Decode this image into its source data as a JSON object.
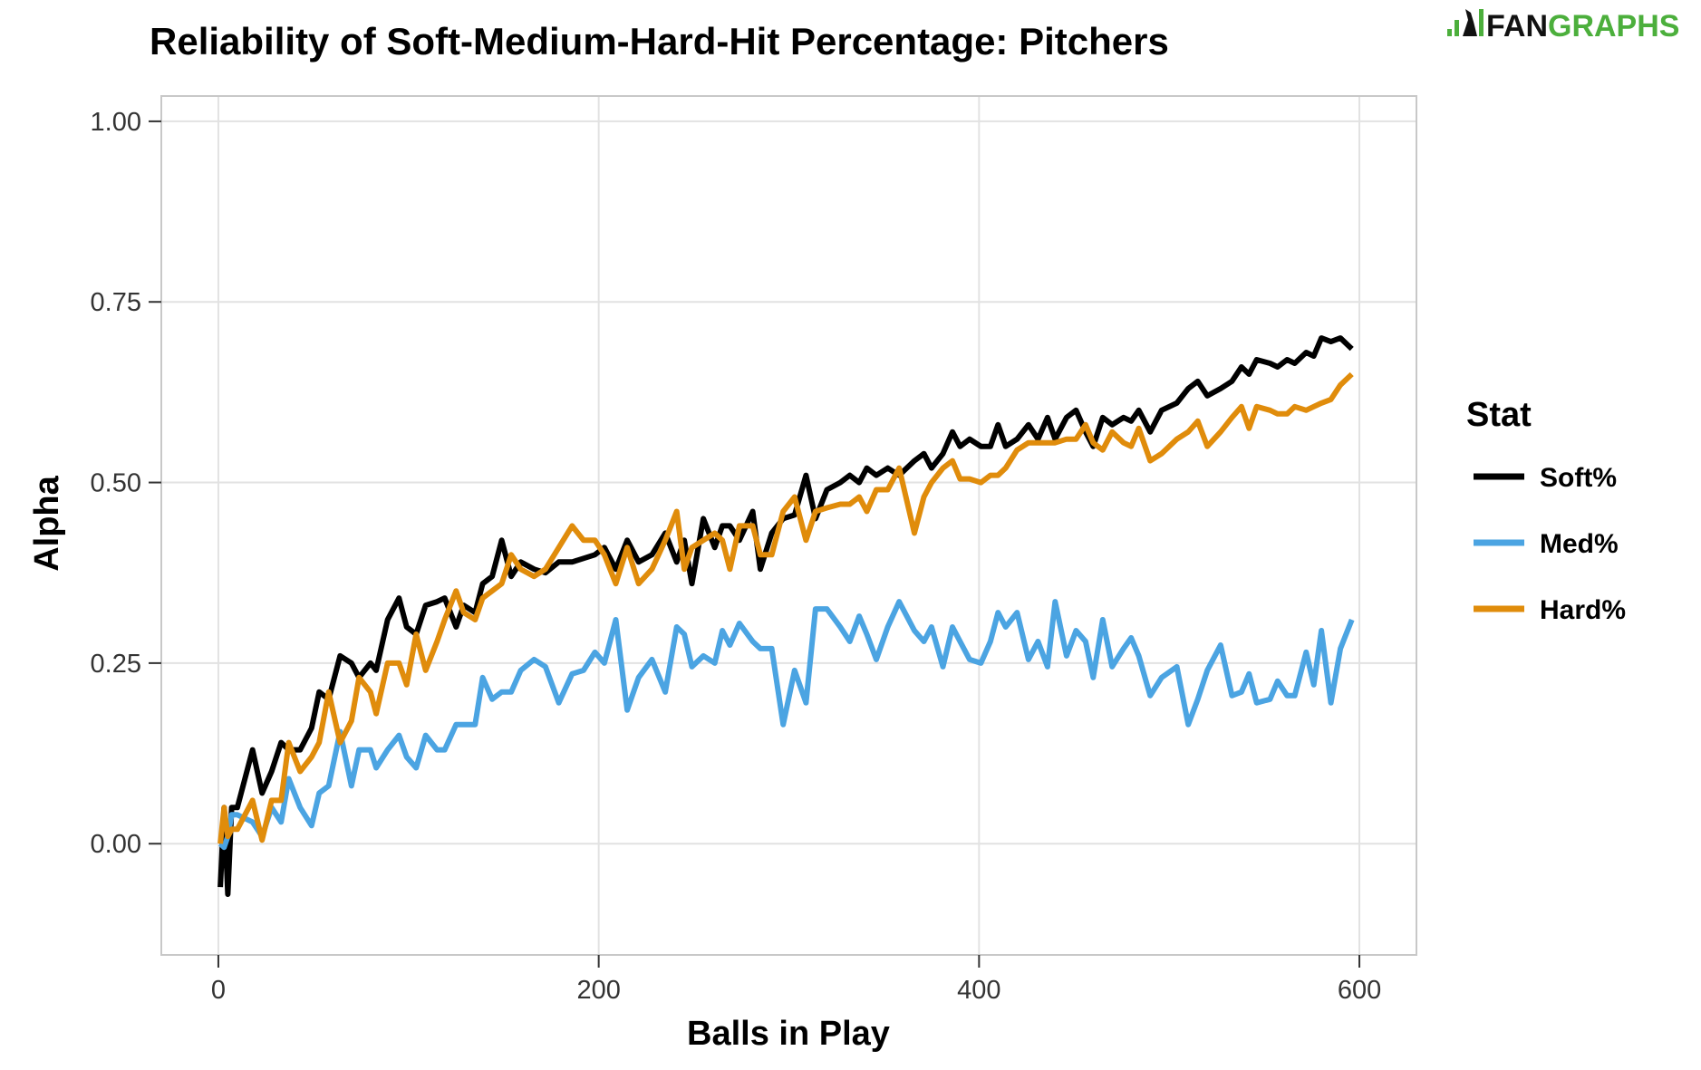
{
  "chart_data": {
    "type": "line",
    "title": "Reliability of Soft-Medium-Hard-Hit Percentage: Pitchers",
    "xlabel": "Balls in Play",
    "ylabel": "Alpha",
    "xlim": [
      -30,
      630
    ],
    "ylim": [
      -0.154,
      1.035
    ],
    "x_ticks": [
      "0",
      "200",
      "400",
      "600"
    ],
    "y_ticks": [
      "0.00",
      "0.25",
      "0.50",
      "0.75",
      "1.00"
    ],
    "grid": true,
    "legend": {
      "title": "Stat",
      "placement": "right"
    },
    "x": [
      1,
      3,
      5,
      7,
      10,
      18,
      23,
      28,
      33,
      37,
      43,
      49,
      53,
      58,
      64,
      70,
      74,
      80,
      83,
      89,
      95,
      99,
      104,
      109,
      115,
      119,
      125,
      129,
      135,
      139,
      144,
      149,
      154,
      159,
      166,
      172,
      179,
      186,
      192,
      198,
      203,
      209,
      215,
      221,
      228,
      235,
      241,
      245,
      249,
      255,
      261,
      265,
      269,
      274,
      281,
      285,
      291,
      297,
      303,
      309,
      314,
      320,
      327,
      332,
      337,
      341,
      346,
      352,
      358,
      366,
      371,
      375,
      381,
      386,
      390,
      395,
      401,
      406,
      410,
      414,
      420,
      426,
      431,
      436,
      440,
      446,
      451,
      456,
      460,
      465,
      470,
      476,
      480,
      484,
      490,
      496,
      504,
      510,
      515,
      520,
      527,
      533,
      538,
      542,
      546,
      553,
      557,
      562,
      566,
      572,
      576,
      580,
      585,
      590,
      596
    ],
    "series": [
      {
        "name": "Soft%",
        "color": "#000000",
        "values": [
          -0.06,
          0.05,
          -0.07,
          0.05,
          0.05,
          0.13,
          0.07,
          0.1,
          0.14,
          0.13,
          0.13,
          0.16,
          0.21,
          0.2,
          0.26,
          0.25,
          0.23,
          0.25,
          0.24,
          0.31,
          0.34,
          0.3,
          0.29,
          0.33,
          0.335,
          0.34,
          0.3,
          0.33,
          0.32,
          0.36,
          0.37,
          0.42,
          0.37,
          0.39,
          0.38,
          0.375,
          0.39,
          0.39,
          0.395,
          0.4,
          0.41,
          0.38,
          0.42,
          0.39,
          0.4,
          0.43,
          0.39,
          0.42,
          0.36,
          0.45,
          0.41,
          0.44,
          0.44,
          0.42,
          0.46,
          0.38,
          0.43,
          0.45,
          0.455,
          0.51,
          0.45,
          0.49,
          0.5,
          0.51,
          0.5,
          0.52,
          0.51,
          0.52,
          0.51,
          0.53,
          0.54,
          0.52,
          0.54,
          0.57,
          0.55,
          0.56,
          0.55,
          0.55,
          0.58,
          0.55,
          0.56,
          0.58,
          0.56,
          0.59,
          0.56,
          0.59,
          0.6,
          0.57,
          0.55,
          0.59,
          0.58,
          0.59,
          0.585,
          0.6,
          0.57,
          0.6,
          0.61,
          0.63,
          0.64,
          0.62,
          0.63,
          0.64,
          0.66,
          0.65,
          0.67,
          0.665,
          0.66,
          0.67,
          0.665,
          0.68,
          0.675,
          0.7,
          0.695,
          0.7,
          0.685
        ]
      },
      {
        "name": "Med%",
        "color": "#4ba4e2",
        "values": [
          0.0,
          -0.005,
          0.01,
          0.04,
          0.04,
          0.03,
          0.01,
          0.05,
          0.03,
          0.09,
          0.05,
          0.025,
          0.07,
          0.08,
          0.155,
          0.08,
          0.13,
          0.13,
          0.105,
          0.13,
          0.15,
          0.12,
          0.105,
          0.15,
          0.13,
          0.13,
          0.165,
          0.165,
          0.165,
          0.23,
          0.2,
          0.21,
          0.21,
          0.24,
          0.255,
          0.245,
          0.195,
          0.235,
          0.24,
          0.265,
          0.25,
          0.31,
          0.185,
          0.23,
          0.255,
          0.21,
          0.3,
          0.29,
          0.245,
          0.26,
          0.25,
          0.295,
          0.275,
          0.305,
          0.28,
          0.27,
          0.27,
          0.165,
          0.24,
          0.195,
          0.325,
          0.325,
          0.3,
          0.28,
          0.315,
          0.29,
          0.255,
          0.3,
          0.335,
          0.295,
          0.28,
          0.3,
          0.245,
          0.3,
          0.28,
          0.255,
          0.25,
          0.28,
          0.32,
          0.3,
          0.32,
          0.255,
          0.28,
          0.245,
          0.335,
          0.26,
          0.295,
          0.28,
          0.23,
          0.31,
          0.245,
          0.27,
          0.285,
          0.26,
          0.205,
          0.23,
          0.245,
          0.165,
          0.2,
          0.24,
          0.275,
          0.205,
          0.21,
          0.235,
          0.195,
          0.2,
          0.225,
          0.205,
          0.205,
          0.265,
          0.22,
          0.295,
          0.195,
          0.27,
          0.31
        ]
      },
      {
        "name": "Hard%",
        "color": "#e08c0b",
        "values": [
          0.0,
          0.05,
          0.01,
          0.02,
          0.02,
          0.06,
          0.005,
          0.06,
          0.06,
          0.14,
          0.1,
          0.12,
          0.14,
          0.21,
          0.14,
          0.17,
          0.23,
          0.21,
          0.18,
          0.25,
          0.25,
          0.22,
          0.29,
          0.24,
          0.28,
          0.31,
          0.35,
          0.32,
          0.31,
          0.34,
          0.35,
          0.36,
          0.4,
          0.38,
          0.37,
          0.38,
          0.41,
          0.44,
          0.42,
          0.42,
          0.4,
          0.36,
          0.41,
          0.36,
          0.38,
          0.42,
          0.46,
          0.38,
          0.41,
          0.42,
          0.43,
          0.42,
          0.38,
          0.44,
          0.44,
          0.4,
          0.4,
          0.46,
          0.48,
          0.42,
          0.46,
          0.465,
          0.47,
          0.47,
          0.48,
          0.46,
          0.49,
          0.49,
          0.52,
          0.43,
          0.48,
          0.5,
          0.52,
          0.53,
          0.505,
          0.505,
          0.5,
          0.51,
          0.51,
          0.52,
          0.545,
          0.555,
          0.555,
          0.555,
          0.555,
          0.56,
          0.56,
          0.58,
          0.555,
          0.545,
          0.57,
          0.555,
          0.55,
          0.575,
          0.53,
          0.54,
          0.56,
          0.57,
          0.585,
          0.55,
          0.57,
          0.59,
          0.605,
          0.575,
          0.605,
          0.6,
          0.595,
          0.595,
          0.605,
          0.6,
          0.605,
          0.61,
          0.615,
          0.635,
          0.65
        ]
      }
    ]
  },
  "logo": {
    "text_dark": "FAN",
    "text_green": "GRAPHS",
    "green": "#4caf3c"
  }
}
